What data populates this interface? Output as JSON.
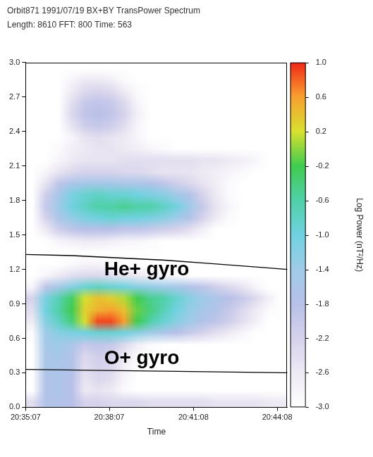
{
  "chart_data": {
    "type": "heatmap",
    "title": "Orbit871 1991/07/19 BX+BY TransPower Spectrum",
    "subtitle": "Length: 8610 FFT: 800 Time: 563",
    "x_label": "Time",
    "xlim": [
      0,
      563
    ],
    "xticks": [
      {
        "value": 0,
        "label": "20:35:07"
      },
      {
        "value": 180,
        "label": "20:38:07"
      },
      {
        "value": 361,
        "label": "20:41:08"
      },
      {
        "value": 541,
        "label": "20:44:08"
      }
    ],
    "ylim": [
      0,
      3
    ],
    "yticks": [
      {
        "value": 0,
        "label": "0.0"
      },
      0.3,
      0.6,
      0.9,
      1.2,
      1.5,
      1.8,
      2.1,
      2.4,
      2.7,
      {
        "value": 3,
        "label": "3.0"
      }
    ],
    "grid": false,
    "time_bins": [
      0,
      28.15,
      56.3,
      84.45,
      112.6,
      140.75,
      168.9,
      197.05,
      225.2,
      253.35,
      281.5,
      309.65,
      337.8,
      365.95,
      394.1,
      422.25,
      450.4,
      478.55,
      506.7,
      534.85,
      563
    ],
    "freq_bins": [
      0,
      0.1,
      0.2,
      0.3,
      0.4,
      0.5,
      0.6,
      0.7,
      0.8,
      0.9,
      1.0,
      1.1,
      1.2,
      1.3,
      1.4,
      1.5,
      1.6,
      1.7,
      1.8,
      1.9,
      2.0,
      2.1,
      2.2,
      2.3,
      2.4,
      2.5,
      2.6,
      2.7,
      2.8,
      2.9,
      3.0
    ],
    "cells": [
      [
        -2.4,
        -1.7,
        -1.7,
        -1.8,
        -2.2,
        -2.2,
        -2.3,
        -2.3,
        -2.3,
        -2.4,
        -2.4,
        -2.4,
        -2.4,
        -2.4,
        -2.5,
        -2.5,
        -2.5,
        -2.5,
        -2.6,
        -2.6
      ],
      [
        -3,
        -1.7,
        -1.6,
        -1.8,
        -2.6,
        -2.5,
        -2.6,
        -2.9,
        -3,
        -3,
        -3,
        -3,
        -3,
        -3,
        -3,
        -3,
        -3,
        -3,
        -3,
        -3
      ],
      [
        -3,
        -1.7,
        -1.6,
        -1.8,
        -2.5,
        -2.3,
        -2.4,
        -2.8,
        -3,
        -3,
        -3,
        -3,
        -3,
        -3,
        -3,
        -3,
        -3,
        -3,
        -3,
        -3
      ],
      [
        -3,
        -1.6,
        -1.6,
        -1.7,
        -2.4,
        -2.2,
        -2.3,
        -2.7,
        -3,
        -3,
        -3,
        -3,
        -3,
        -3,
        -3,
        -3,
        -3,
        -3,
        -3,
        -3
      ],
      [
        -3,
        -1.6,
        -1.5,
        -1.7,
        -2.3,
        -2.1,
        -2.2,
        -2.6,
        -2.9,
        -3,
        -3,
        -3,
        -3,
        -3,
        -3,
        -3,
        -3,
        -3,
        -3,
        -3
      ],
      [
        -3,
        -1.5,
        -1.4,
        -1.6,
        -2.0,
        -1.9,
        -2.0,
        -2.3,
        -2.7,
        -2.9,
        -3,
        -3,
        -3,
        -3,
        -3,
        -3,
        -3,
        -3,
        -3,
        -3
      ],
      [
        -2.9,
        -1.4,
        -1.2,
        -1.1,
        -1.0,
        -0.9,
        -0.9,
        -1.0,
        -1.2,
        -1.4,
        -1.6,
        -1.8,
        -2.0,
        -2.2,
        -2.4,
        -2.6,
        -2.8,
        -3,
        -3,
        -3
      ],
      [
        -2.6,
        -1.2,
        -0.8,
        -0.4,
        0.2,
        0.9,
        0.9,
        0.6,
        -0.2,
        -0.6,
        -0.9,
        -1.2,
        -1.4,
        -1.7,
        -1.9,
        -2.1,
        -2.4,
        -2.7,
        -3,
        -3
      ],
      [
        -2.4,
        -1.0,
        -0.6,
        -0.2,
        0.3,
        0.5,
        0.6,
        0.4,
        -0.1,
        -0.4,
        -0.7,
        -1.0,
        -1.3,
        -1.5,
        -1.7,
        -2.0,
        -2.3,
        -2.6,
        -2.9,
        -3
      ],
      [
        -2.2,
        -1.1,
        -0.7,
        -0.3,
        0.2,
        0.4,
        0.3,
        0.1,
        -0.2,
        -0.5,
        -0.6,
        -0.9,
        -1.2,
        -1.4,
        -1.6,
        -1.8,
        -2.0,
        -2.3,
        -2.7,
        -3
      ],
      [
        -2.8,
        -1.9,
        -1.5,
        -1.2,
        -0.9,
        -0.8,
        -0.9,
        -1.0,
        -1.2,
        -1.3,
        -1.4,
        -1.5,
        -1.7,
        -1.9,
        -2.1,
        -2.3,
        -2.5,
        -2.8,
        -3,
        -3
      ],
      [
        -3,
        -2.8,
        -2.6,
        -2.4,
        -2.3,
        -2.3,
        -2.4,
        -2.5,
        -2.6,
        -2.7,
        -2.8,
        -2.9,
        -3,
        -3,
        -3,
        -3,
        -3,
        -3,
        -3,
        -3
      ],
      [
        -3,
        -3,
        -3,
        -2.9,
        -2.8,
        -2.8,
        -2.9,
        -3,
        -3,
        -3,
        -3,
        -3,
        -3,
        -3,
        -3,
        -3,
        -3,
        -3,
        -3,
        -3
      ],
      [
        -3,
        -3,
        -3,
        -3,
        -3,
        -3,
        -3,
        -3,
        -3,
        -3,
        -3,
        -3,
        -3,
        -3,
        -3,
        -3,
        -3,
        -3,
        -3,
        -3
      ],
      [
        -3,
        -3,
        -2.8,
        -2.7,
        -2.6,
        -2.6,
        -2.7,
        -2.8,
        -2.8,
        -2.9,
        -3,
        -3,
        -3,
        -3,
        -3,
        -3,
        -3,
        -3,
        -3,
        -3
      ],
      [
        -3,
        -2.6,
        -2.1,
        -1.9,
        -1.8,
        -1.8,
        -1.8,
        -1.9,
        -1.9,
        -2.0,
        -2.1,
        -2.2,
        -2.4,
        -2.7,
        -3,
        -3,
        -3,
        -3,
        -3,
        -3
      ],
      [
        -3,
        -2.2,
        -1.6,
        -1.3,
        -1.1,
        -1.0,
        -0.9,
        -1.0,
        -1.0,
        -1.1,
        -1.2,
        -1.4,
        -1.7,
        -2.2,
        -2.6,
        -2.9,
        -3,
        -3,
        -3,
        -3
      ],
      [
        -3,
        -2.0,
        -1.4,
        -1.0,
        -0.8,
        -0.6,
        -0.6,
        -0.5,
        -0.6,
        -0.6,
        -0.8,
        -1.0,
        -1.4,
        -2.0,
        -2.5,
        -2.8,
        -3,
        -3,
        -3,
        -3
      ],
      [
        -3,
        -2.1,
        -1.5,
        -1.1,
        -0.9,
        -0.8,
        -0.9,
        -0.9,
        -1.0,
        -1.1,
        -1.2,
        -1.4,
        -1.7,
        -2.2,
        -2.6,
        -2.9,
        -3,
        -3,
        -3,
        -3
      ],
      [
        -3,
        -2.5,
        -1.9,
        -1.6,
        -1.5,
        -1.5,
        -1.5,
        -1.6,
        -1.6,
        -1.7,
        -1.9,
        -2.1,
        -2.3,
        -2.5,
        -2.7,
        -2.9,
        -3,
        -3,
        -3,
        -3
      ],
      [
        -3,
        -2.8,
        -2.5,
        -2.3,
        -2.2,
        -2.2,
        -2.2,
        -2.3,
        -2.3,
        -2.4,
        -2.5,
        -2.5,
        -2.5,
        -2.6,
        -2.7,
        -2.8,
        -2.9,
        -3,
        -3,
        -3
      ],
      [
        -3,
        -3,
        -2.8,
        -2.6,
        -2.5,
        -2.5,
        -2.5,
        -2.4,
        -2.4,
        -2.4,
        -2.4,
        -2.4,
        -2.4,
        -2.5,
        -2.5,
        -2.6,
        -2.7,
        -2.8,
        -3,
        -3
      ],
      [
        -3,
        -3,
        -2.9,
        -2.7,
        -2.6,
        -2.5,
        -2.5,
        -2.6,
        -2.7,
        -2.8,
        -2.9,
        -3,
        -3,
        -3,
        -3,
        -3,
        -3,
        -3,
        -3,
        -3
      ],
      [
        -3,
        -3,
        -3,
        -2.8,
        -2.5,
        -2.4,
        -2.5,
        -2.6,
        -2.8,
        -3,
        -3,
        -3,
        -3,
        -3,
        -3,
        -3,
        -3,
        -3,
        -3,
        -3
      ],
      [
        -3,
        -3,
        -3,
        -2.5,
        -2.1,
        -2.0,
        -2.1,
        -2.4,
        -2.8,
        -3,
        -3,
        -3,
        -3,
        -3,
        -3,
        -3,
        -3,
        -3,
        -3,
        -3
      ],
      [
        -3,
        -3,
        -3,
        -2.3,
        -1.9,
        -1.8,
        -1.9,
        -2.2,
        -2.7,
        -3,
        -3,
        -3,
        -3,
        -3,
        -3,
        -3,
        -3,
        -3,
        -3,
        -3
      ],
      [
        -3,
        -3,
        -3,
        -2.4,
        -2.0,
        -1.9,
        -2.0,
        -2.3,
        -2.8,
        -3,
        -3,
        -3,
        -3,
        -3,
        -3,
        -3,
        -3,
        -3,
        -3,
        -3
      ],
      [
        -3,
        -3,
        -3,
        -2.6,
        -2.3,
        -2.2,
        -2.3,
        -2.6,
        -2.9,
        -3,
        -3,
        -3,
        -3,
        -3,
        -3,
        -3,
        -3,
        -3,
        -3,
        -3
      ],
      [
        -3,
        -3,
        -3,
        -2.8,
        -2.6,
        -2.6,
        -2.7,
        -2.9,
        -3,
        -3,
        -3,
        -3,
        -3,
        -3,
        -3,
        -3,
        -3,
        -3,
        -3,
        -3
      ],
      [
        -3,
        -3,
        -3,
        -3,
        -3,
        -3,
        -3,
        -3,
        -3,
        -3,
        -3,
        -3,
        -3,
        -3,
        -3,
        -3,
        -3,
        -3,
        -3,
        -3
      ]
    ],
    "colorbar": {
      "label": "Log Power (nT²/Hz)",
      "lim": [
        -3,
        1
      ],
      "ticks": [
        {
          "value": 1,
          "label": "1.0"
        },
        0.6,
        0.2,
        -0.2,
        -0.6,
        {
          "value": -1,
          "label": "-1.0"
        },
        -1.4,
        -1.8,
        -2.2,
        -2.6,
        {
          "value": -3,
          "label": "-3.0"
        }
      ]
    },
    "series": [
      {
        "name": "He+ gyro",
        "color": "#000000",
        "x": [
          0,
          100,
          200,
          300,
          400,
          500,
          563
        ],
        "values": [
          1.33,
          1.32,
          1.3,
          1.28,
          1.25,
          1.22,
          1.2
        ]
      },
      {
        "name": "O+ gyro",
        "color": "#000000",
        "x": [
          0,
          563
        ],
        "values": [
          0.33,
          0.3
        ]
      }
    ]
  }
}
